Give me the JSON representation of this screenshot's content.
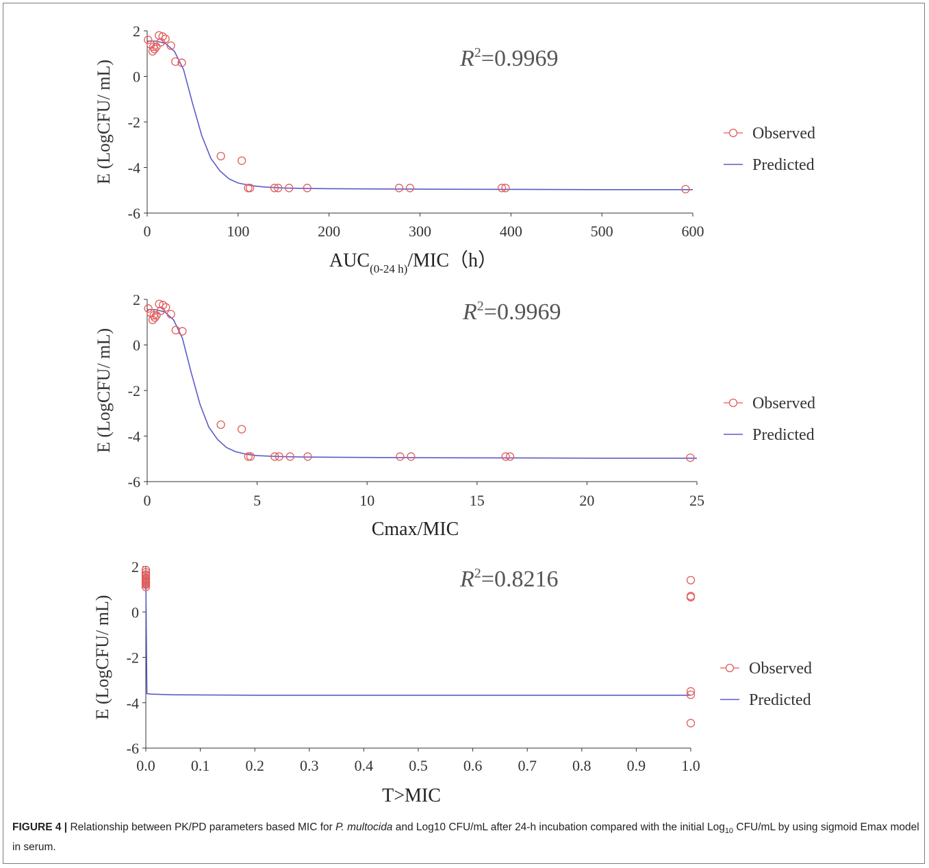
{
  "chart_data": [
    {
      "type": "scatter",
      "xlabel_main": "AUC",
      "xlabel_sub": "(0-24 h)",
      "xlabel_rest": "/MIC（h）",
      "ylabel": "E (LogCFU/ mL)",
      "annotation_r2": "=0.9969",
      "xlim": [
        0,
        600
      ],
      "ylim": [
        -6,
        2
      ],
      "x_ticks": [
        "0",
        "100",
        "200",
        "300",
        "400",
        "500",
        "600"
      ],
      "y_ticks": [
        "2",
        "0",
        "-2",
        "-4",
        "-6"
      ],
      "legend_position": "right",
      "series": [
        {
          "name": "Observed",
          "marker": "circle",
          "color": "#e05c5c",
          "x": [
            1,
            4,
            6,
            7,
            8,
            10,
            13,
            15,
            17,
            20,
            26,
            31,
            38,
            81,
            104,
            111,
            113,
            140,
            144,
            156,
            176,
            277,
            289,
            390,
            394,
            592
          ],
          "y": [
            1.6,
            1.4,
            1.1,
            1.3,
            1.2,
            1.3,
            1.8,
            1.5,
            1.75,
            1.65,
            1.35,
            0.65,
            0.6,
            -3.5,
            -3.7,
            -4.9,
            -4.9,
            -4.9,
            -4.9,
            -4.9,
            -4.9,
            -4.9,
            -4.9,
            -4.9,
            -4.9,
            -4.95
          ]
        },
        {
          "name": "Predicted",
          "color": "#5a5ac8",
          "x": [
            0,
            10,
            20,
            30,
            40,
            50,
            60,
            70,
            80,
            90,
            100,
            115,
            130,
            150,
            175,
            200,
            250,
            300,
            400,
            500,
            600
          ],
          "y": [
            1.55,
            1.55,
            1.45,
            1.1,
            0.3,
            -1.2,
            -2.6,
            -3.6,
            -4.15,
            -4.5,
            -4.68,
            -4.8,
            -4.86,
            -4.9,
            -4.92,
            -4.93,
            -4.94,
            -4.95,
            -4.96,
            -4.97,
            -4.97
          ]
        }
      ]
    },
    {
      "type": "scatter",
      "xlabel": "Cmax/MIC",
      "ylabel": "E (LogCFU/ mL)",
      "annotation_r2": "=0.9969",
      "xlim": [
        0,
        25
      ],
      "ylim": [
        -6,
        2
      ],
      "x_ticks": [
        "0",
        "5",
        "10",
        "15",
        "20",
        "25"
      ],
      "y_ticks": [
        "2",
        "0",
        "-2",
        "-4",
        "-6"
      ],
      "legend_position": "right",
      "series": [
        {
          "name": "Observed",
          "marker": "circle",
          "color": "#e05c5c",
          "x": [
            0.05,
            0.17,
            0.25,
            0.3,
            0.35,
            0.42,
            0.55,
            0.62,
            0.72,
            0.85,
            1.08,
            1.3,
            1.6,
            3.35,
            4.3,
            4.6,
            4.7,
            5.8,
            6.0,
            6.5,
            7.3,
            11.5,
            12.0,
            16.3,
            16.5,
            24.7
          ],
          "y": [
            1.6,
            1.4,
            1.1,
            1.3,
            1.2,
            1.3,
            1.8,
            1.5,
            1.75,
            1.65,
            1.35,
            0.65,
            0.6,
            -3.5,
            -3.7,
            -4.9,
            -4.9,
            -4.9,
            -4.9,
            -4.9,
            -4.9,
            -4.9,
            -4.9,
            -4.9,
            -4.9,
            -4.95
          ]
        },
        {
          "name": "Predicted",
          "color": "#5a5ac8",
          "x": [
            0,
            0.4,
            0.8,
            1.2,
            1.6,
            2.0,
            2.4,
            2.8,
            3.2,
            3.6,
            4.0,
            4.5,
            5.0,
            6.0,
            7.0,
            8.5,
            10.5,
            12.5,
            16.5,
            20.5,
            25
          ],
          "y": [
            1.55,
            1.55,
            1.45,
            1.1,
            0.3,
            -1.2,
            -2.6,
            -3.6,
            -4.15,
            -4.5,
            -4.68,
            -4.8,
            -4.86,
            -4.9,
            -4.92,
            -4.93,
            -4.94,
            -4.95,
            -4.96,
            -4.97,
            -4.97
          ]
        }
      ]
    },
    {
      "type": "scatter",
      "xlabel": "T>MIC",
      "ylabel": "E (LogCFU/ mL)",
      "annotation_r2": "=0.8216",
      "xlim": [
        0,
        1
      ],
      "ylim": [
        -6,
        2
      ],
      "x_ticks": [
        "0.0",
        "0.1",
        "0.2",
        "0.3",
        "0.4",
        "0.5",
        "0.6",
        "0.7",
        "0.8",
        "0.9",
        "1.0"
      ],
      "y_ticks": [
        "2",
        "0",
        "-2",
        "-4",
        "-6"
      ],
      "legend_position": "right",
      "series": [
        {
          "name": "Observed",
          "marker": "circle",
          "color": "#e05c5c",
          "x": [
            0,
            0,
            0,
            0,
            0,
            0,
            0,
            0,
            0,
            0,
            0,
            0,
            1,
            1,
            1,
            1,
            1,
            1
          ],
          "y": [
            1.85,
            1.75,
            1.65,
            1.6,
            1.5,
            1.45,
            1.4,
            1.35,
            1.3,
            1.25,
            1.2,
            1.1,
            1.4,
            0.7,
            0.65,
            -3.5,
            -3.65,
            -4.9
          ]
        },
        {
          "name": "Predicted",
          "color": "#5a5ac8",
          "x": [
            0,
            0.001,
            0.002,
            0.01,
            0.05,
            0.2,
            0.5,
            0.75,
            1.0
          ],
          "y": [
            1.5,
            -1.0,
            -3.6,
            -3.62,
            -3.65,
            -3.67,
            -3.67,
            -3.67,
            -3.67
          ]
        }
      ]
    }
  ],
  "caption": {
    "label": "FIGURE 4 |",
    "text_1": " Relationship between PK/PD parameters based MIC for ",
    "italic_species": "P. multocida",
    "text_2": " and Log10 CFU/mL after 24-h incubation compared with the initial Log",
    "sub": "10",
    "text_3": " CFU/mL by using sigmoid Emax model in serum."
  }
}
